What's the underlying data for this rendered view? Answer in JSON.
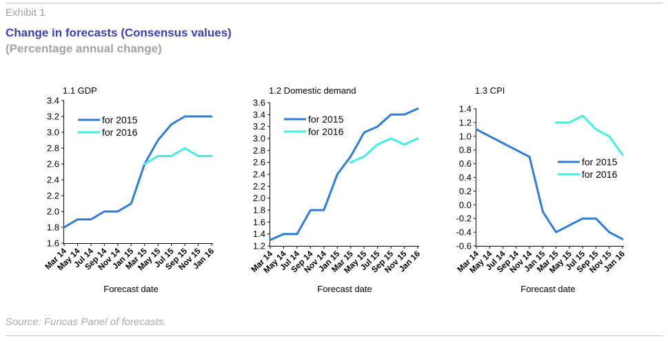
{
  "header": {
    "exhibit": "Exhibit 1",
    "title": "Change in forecasts (Consensus values)",
    "subtitle": "(Percentage annual change)"
  },
  "footer": {
    "source": "Source: Funcas Panel of forecasts."
  },
  "colors": {
    "series2015": "#2e7bd8",
    "series2016": "#3ff0e0",
    "axis": "#000000"
  },
  "chart_data": [
    {
      "type": "line",
      "title": "1.1 GDP",
      "xlabel": "Forecast date",
      "ylabel": "",
      "x": [
        "Mar 14",
        "May 14",
        "Jul 14",
        "Sep 14",
        "Nov 14",
        "Jan 15",
        "Mar 15",
        "May 15",
        "Jul 15",
        "Sep 15",
        "Nov 15",
        "Jan 16"
      ],
      "ylim": [
        1.6,
        3.4
      ],
      "yticks": [
        "1.6",
        "1.8",
        "2.0",
        "2.2",
        "2.4",
        "2.6",
        "2.8",
        "3.0",
        "3.2",
        "3.4"
      ],
      "legend": "top-left",
      "series": [
        {
          "name": "for 2015",
          "values": [
            1.8,
            1.9,
            1.9,
            2.0,
            2.0,
            2.1,
            2.6,
            2.9,
            3.1,
            3.2,
            3.2,
            3.2
          ]
        },
        {
          "name": "for 2016",
          "values": [
            null,
            null,
            null,
            null,
            null,
            null,
            2.6,
            2.7,
            2.7,
            2.8,
            2.7,
            2.7
          ]
        }
      ]
    },
    {
      "type": "line",
      "title": "1.2 Domestic demand",
      "xlabel": "Forecast date",
      "ylabel": "",
      "x": [
        "Mar 14",
        "May 14",
        "Jul 14",
        "Sep 14",
        "Nov 14",
        "Jan 15",
        "Mar 15",
        "May 15",
        "Jul 15",
        "Sep 15",
        "Nov 15",
        "Jan 16"
      ],
      "ylim": [
        1.2,
        3.6
      ],
      "yticks": [
        "1.2",
        "1.4",
        "1.6",
        "1.8",
        "2.0",
        "2.2",
        "2.4",
        "2.6",
        "2.8",
        "3.0",
        "3.2",
        "3.4",
        "3.6"
      ],
      "legend": "top-left",
      "series": [
        {
          "name": "for 2015",
          "values": [
            1.3,
            1.4,
            1.4,
            1.8,
            1.8,
            2.4,
            2.7,
            3.1,
            3.2,
            3.4,
            3.4,
            3.5
          ]
        },
        {
          "name": "for 2016",
          "values": [
            null,
            null,
            null,
            null,
            null,
            null,
            2.6,
            2.7,
            2.9,
            3.0,
            2.9,
            3.0
          ]
        }
      ]
    },
    {
      "type": "line",
      "title": "1.3 CPI",
      "xlabel": "Forecast date",
      "ylabel": "",
      "x": [
        "Mar 14",
        "May 14",
        "Jul 14",
        "Sep 14",
        "Nov 14",
        "Jan 15",
        "Mar 15",
        "May 15",
        "Jul 15",
        "Sep 15",
        "Nov 15",
        "Jan 16"
      ],
      "ylim": [
        -0.6,
        1.4
      ],
      "yticks": [
        "-0.6",
        "-0.4",
        "-0.2",
        "0.0",
        "0.2",
        "0.4",
        "0.6",
        "0.8",
        "1.0",
        "1.2",
        "1.4"
      ],
      "legend": "center-right",
      "series": [
        {
          "name": "for 2015",
          "values": [
            1.1,
            null,
            null,
            null,
            0.7,
            -0.1,
            -0.4,
            -0.3,
            -0.2,
            -0.2,
            -0.4,
            -0.5
          ]
        },
        {
          "name": "for 2016",
          "values": [
            null,
            null,
            null,
            null,
            null,
            null,
            1.2,
            1.2,
            1.3,
            1.1,
            1.0,
            0.73
          ]
        }
      ]
    }
  ]
}
